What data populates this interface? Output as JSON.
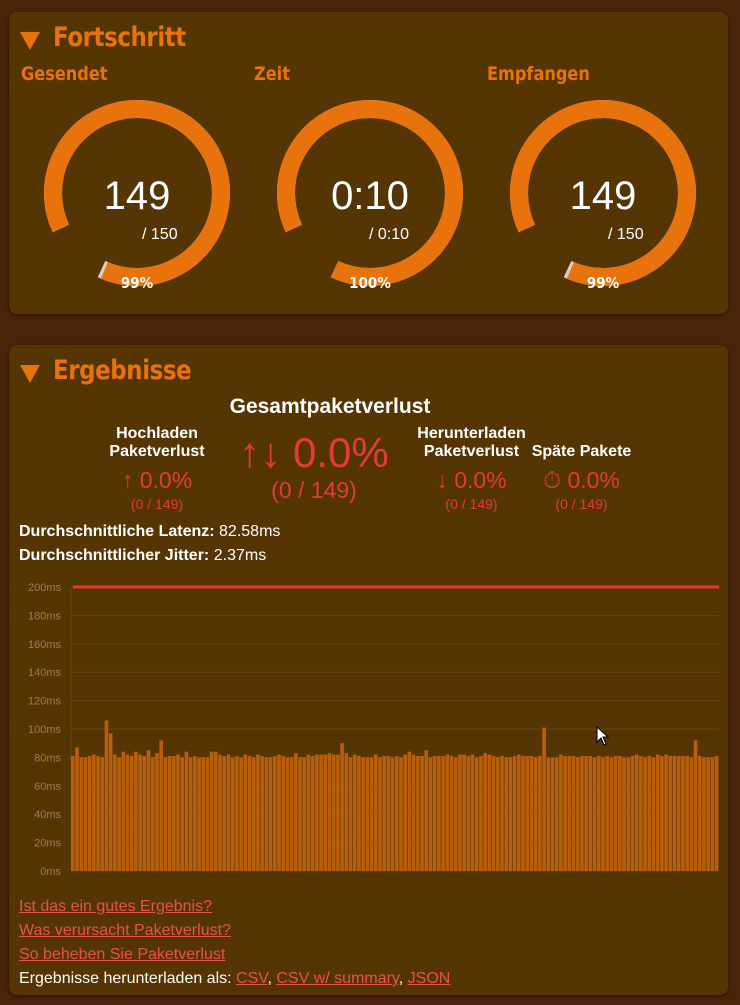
{
  "progress": {
    "title": "Fortschritt",
    "gauges": [
      {
        "label": "Gesendet",
        "value": "149",
        "total": "/ 150",
        "percent": "99%",
        "fraction": 0.9933
      },
      {
        "label": "Zeit",
        "value": "0:10",
        "total": "/ 0:10",
        "percent": "100%",
        "fraction": 1.0
      },
      {
        "label": "Empfangen",
        "value": "149",
        "total": "/ 150",
        "percent": "99%",
        "fraction": 0.9933
      }
    ]
  },
  "results": {
    "title": "Ergebnisse",
    "total_heading": "Gesamtpaketverlust",
    "upload": {
      "title_line1": "Hochladen",
      "title_line2": "Paketverlust",
      "icon": "arrow-up-icon",
      "value": "0.0%",
      "count": "(0 / 149)"
    },
    "total": {
      "icon": "arrows-up-down-icon",
      "value": "0.0%",
      "count": "(0 / 149)"
    },
    "download": {
      "title_line1": "Herunterladen",
      "title_line2": "Paketverlust",
      "icon": "arrow-down-icon",
      "value": "0.0%",
      "count": "(0 / 149)"
    },
    "late": {
      "title": "Späte Pakete",
      "icon": "stopwatch-icon",
      "value": "0.0%",
      "count": "(0 / 149)"
    },
    "latency_label": "Durchschnittliche Latenz:",
    "latency_value": "82.58ms",
    "jitter_label": "Durchschnittlicher Jitter:",
    "jitter_value": "2.37ms",
    "links": {
      "good_result": "Ist das ein gutes Ergebnis?",
      "causes": "Was verursacht Paketverlust?",
      "fix": "So beheben Sie Paketverlust",
      "download_prefix": "Ergebnisse herunterladen als:",
      "csv": "CSV",
      "csv_summary": "CSV w/ summary",
      "json": "JSON"
    }
  },
  "colors": {
    "accent": "#e8720c",
    "bar": "#b95e0c",
    "loss": "#e33a3a",
    "threshold": "#e33a3a",
    "panel": "#563505",
    "background": "#4a2409"
  },
  "chart_data": {
    "type": "bar",
    "ylabel": "",
    "ylim": [
      0,
      200
    ],
    "yticks": [
      "0ms",
      "20ms",
      "40ms",
      "60ms",
      "80ms",
      "100ms",
      "120ms",
      "140ms",
      "160ms",
      "180ms",
      "200ms"
    ],
    "threshold": 200,
    "values": [
      81,
      87,
      80,
      80,
      81,
      82,
      81,
      80,
      106,
      97,
      82,
      80,
      84,
      82,
      81,
      84,
      82,
      81,
      85,
      80,
      83,
      92,
      80,
      81,
      81,
      82,
      80,
      84,
      80,
      81,
      80,
      80,
      80,
      84,
      84,
      82,
      81,
      82,
      80,
      81,
      80,
      82,
      81,
      80,
      82,
      81,
      80,
      80,
      81,
      82,
      81,
      80,
      80,
      83,
      80,
      80,
      82,
      81,
      82,
      82,
      82,
      83,
      82,
      82,
      90,
      83,
      80,
      82,
      81,
      80,
      80,
      80,
      82,
      80,
      81,
      81,
      80,
      81,
      80,
      82,
      84,
      82,
      81,
      81,
      85,
      80,
      81,
      81,
      81,
      82,
      81,
      80,
      82,
      82,
      81,
      82,
      80,
      81,
      83,
      82,
      81,
      80,
      81,
      80,
      80,
      81,
      82,
      81,
      81,
      81,
      80,
      81,
      101,
      80,
      80,
      80,
      82,
      81,
      81,
      81,
      80,
      81,
      81,
      81,
      80,
      81,
      80,
      81,
      80,
      81,
      81,
      80,
      80,
      81,
      82,
      81,
      80,
      81,
      80,
      82,
      81,
      82,
      81,
      81,
      81,
      81,
      81,
      80,
      92,
      81,
      80,
      80,
      80,
      81
    ]
  }
}
